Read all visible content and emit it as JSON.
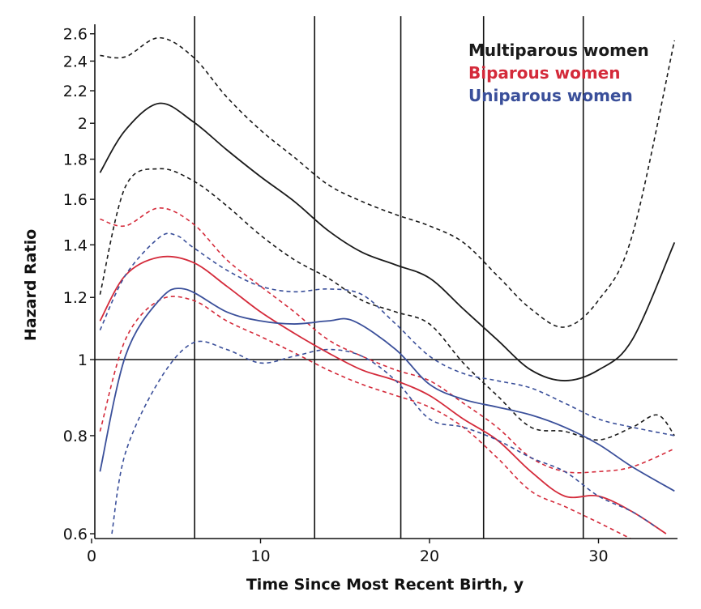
{
  "chart_data": {
    "type": "line",
    "title": "",
    "xlabel": "Time Since Most Recent Birth, y",
    "ylabel": "Hazard Ratio",
    "xlim": [
      0,
      35
    ],
    "ylim": [
      0.6,
      2.6
    ],
    "y_scale": "log",
    "x_ticks": [
      0,
      10,
      20,
      30
    ],
    "y_ticks": [
      0.6,
      0.8,
      1,
      1.2,
      1.4,
      1.6,
      1.8,
      2,
      2.2,
      2.4,
      2.6
    ],
    "y_tick_labels": [
      "0.6",
      "0.8",
      "1",
      "1.2",
      "1.4",
      "1.6",
      "1.8",
      "2",
      "2.2",
      "2.4",
      "2.6"
    ],
    "x_tick_labels": [
      "0",
      "10",
      "20",
      "30"
    ],
    "reference_lines": {
      "horizontal": [
        1
      ],
      "vertical": [
        6.1,
        13.2,
        18.3,
        23.2,
        29.1
      ]
    },
    "grid": false,
    "legend_placement": "top-right",
    "series": [
      {
        "name": "Multiparous women",
        "color": "#1a1a1a",
        "estimate": [
          [
            0.5,
            1.73
          ],
          [
            2,
            1.96
          ],
          [
            4,
            2.12
          ],
          [
            6,
            2.01
          ],
          [
            8,
            1.85
          ],
          [
            10,
            1.71
          ],
          [
            12,
            1.59
          ],
          [
            14,
            1.46
          ],
          [
            16,
            1.37
          ],
          [
            18,
            1.32
          ],
          [
            20,
            1.27
          ],
          [
            22,
            1.16
          ],
          [
            24,
            1.06
          ],
          [
            26,
            0.97
          ],
          [
            28,
            0.94
          ],
          [
            30,
            0.97
          ],
          [
            32,
            1.06
          ],
          [
            34.5,
            1.41
          ]
        ],
        "upper": [
          [
            0.5,
            2.44
          ],
          [
            2,
            2.43
          ],
          [
            4,
            2.57
          ],
          [
            6,
            2.43
          ],
          [
            8,
            2.16
          ],
          [
            10,
            1.96
          ],
          [
            12,
            1.81
          ],
          [
            14,
            1.67
          ],
          [
            16,
            1.59
          ],
          [
            18,
            1.53
          ],
          [
            20,
            1.48
          ],
          [
            22,
            1.41
          ],
          [
            24,
            1.28
          ],
          [
            26,
            1.16
          ],
          [
            28,
            1.1
          ],
          [
            30,
            1.19
          ],
          [
            32,
            1.44
          ],
          [
            34.5,
            2.55
          ]
        ],
        "lower": [
          [
            0.5,
            1.21
          ],
          [
            2,
            1.66
          ],
          [
            4,
            1.75
          ],
          [
            6,
            1.69
          ],
          [
            8,
            1.57
          ],
          [
            10,
            1.44
          ],
          [
            12,
            1.34
          ],
          [
            14,
            1.27
          ],
          [
            16,
            1.19
          ],
          [
            18,
            1.15
          ],
          [
            20,
            1.11
          ],
          [
            22,
            0.99
          ],
          [
            24,
            0.9
          ],
          [
            26,
            0.82
          ],
          [
            28,
            0.81
          ],
          [
            30,
            0.79
          ],
          [
            32,
            0.82
          ],
          [
            33.5,
            0.85
          ],
          [
            34.5,
            0.8
          ]
        ]
      },
      {
        "name": "Biparous women",
        "color": "#d42a3a",
        "estimate": [
          [
            0.5,
            1.12
          ],
          [
            2,
            1.28
          ],
          [
            4,
            1.35
          ],
          [
            6,
            1.33
          ],
          [
            8,
            1.24
          ],
          [
            10,
            1.15
          ],
          [
            12,
            1.08
          ],
          [
            14,
            1.02
          ],
          [
            16,
            0.97
          ],
          [
            18,
            0.94
          ],
          [
            20,
            0.9
          ],
          [
            22,
            0.84
          ],
          [
            24,
            0.79
          ],
          [
            26,
            0.72
          ],
          [
            28,
            0.67
          ],
          [
            30,
            0.67
          ],
          [
            32,
            0.64
          ],
          [
            34,
            0.6
          ]
        ],
        "upper": [
          [
            0.5,
            1.51
          ],
          [
            2,
            1.48
          ],
          [
            4,
            1.56
          ],
          [
            6,
            1.49
          ],
          [
            8,
            1.34
          ],
          [
            10,
            1.24
          ],
          [
            12,
            1.15
          ],
          [
            14,
            1.06
          ],
          [
            16,
            1.01
          ],
          [
            18,
            0.97
          ],
          [
            20,
            0.94
          ],
          [
            22,
            0.88
          ],
          [
            24,
            0.82
          ],
          [
            26,
            0.75
          ],
          [
            28,
            0.72
          ],
          [
            30,
            0.72
          ],
          [
            32,
            0.73
          ],
          [
            34.5,
            0.77
          ]
        ],
        "lower": [
          [
            0.5,
            0.81
          ],
          [
            2,
            1.06
          ],
          [
            4,
            1.19
          ],
          [
            6,
            1.19
          ],
          [
            8,
            1.12
          ],
          [
            10,
            1.07
          ],
          [
            12,
            1.02
          ],
          [
            14,
            0.97
          ],
          [
            16,
            0.93
          ],
          [
            18,
            0.9
          ],
          [
            20,
            0.87
          ],
          [
            22,
            0.82
          ],
          [
            24,
            0.75
          ],
          [
            26,
            0.68
          ],
          [
            28,
            0.65
          ],
          [
            30,
            0.62
          ],
          [
            32,
            0.59
          ]
        ]
      },
      {
        "name": "Uniparous women",
        "color": "#3a4f9a",
        "estimate": [
          [
            0.5,
            0.72
          ],
          [
            2,
            1.01
          ],
          [
            4,
            1.19
          ],
          [
            5.5,
            1.23
          ],
          [
            8,
            1.15
          ],
          [
            10,
            1.12
          ],
          [
            12,
            1.11
          ],
          [
            14,
            1.12
          ],
          [
            15.5,
            1.12
          ],
          [
            18,
            1.03
          ],
          [
            20,
            0.93
          ],
          [
            22,
            0.89
          ],
          [
            24,
            0.87
          ],
          [
            26,
            0.85
          ],
          [
            28,
            0.82
          ],
          [
            30,
            0.78
          ],
          [
            32,
            0.73
          ],
          [
            34.5,
            0.68
          ]
        ],
        "upper": [
          [
            0.5,
            1.09
          ],
          [
            2,
            1.28
          ],
          [
            4,
            1.43
          ],
          [
            5,
            1.44
          ],
          [
            6,
            1.39
          ],
          [
            8,
            1.3
          ],
          [
            10,
            1.24
          ],
          [
            12,
            1.22
          ],
          [
            14,
            1.23
          ],
          [
            16,
            1.21
          ],
          [
            18,
            1.11
          ],
          [
            20,
            1.01
          ],
          [
            22,
            0.96
          ],
          [
            24,
            0.94
          ],
          [
            26,
            0.92
          ],
          [
            28,
            0.88
          ],
          [
            30,
            0.84
          ],
          [
            32,
            0.82
          ],
          [
            34.5,
            0.8
          ]
        ],
        "lower": [
          [
            1.2,
            0.6
          ],
          [
            2,
            0.76
          ],
          [
            4,
            0.94
          ],
          [
            6,
            1.05
          ],
          [
            8,
            1.03
          ],
          [
            10,
            0.99
          ],
          [
            12,
            1.01
          ],
          [
            14,
            1.03
          ],
          [
            16,
            1.01
          ],
          [
            18,
            0.94
          ],
          [
            20,
            0.84
          ],
          [
            22,
            0.82
          ],
          [
            24,
            0.79
          ],
          [
            26,
            0.75
          ],
          [
            28,
            0.72
          ],
          [
            30,
            0.67
          ],
          [
            32,
            0.64
          ],
          [
            33.5,
            0.61
          ]
        ]
      }
    ]
  }
}
